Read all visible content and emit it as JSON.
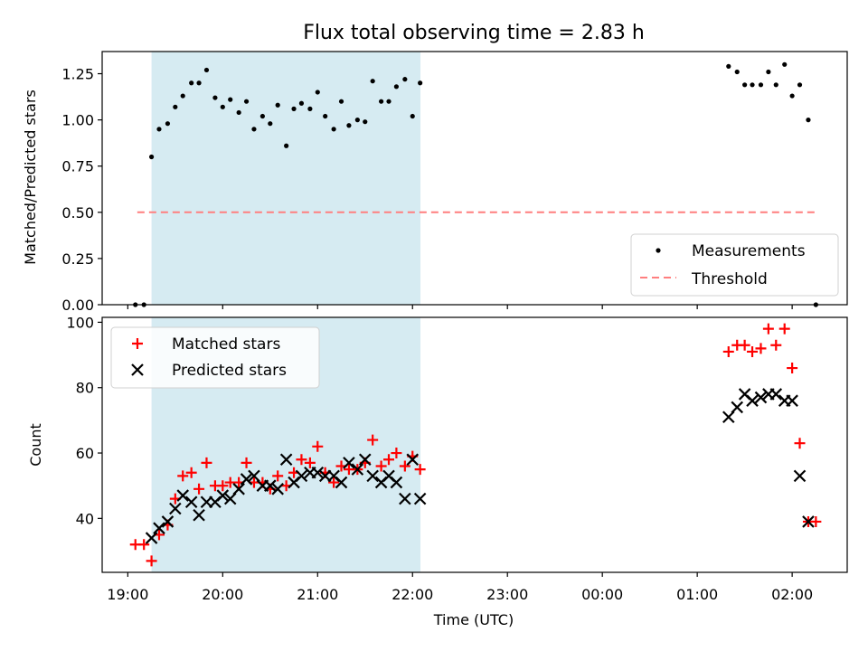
{
  "chart_data": {
    "title": "Flux total observing time = 2.83 h",
    "observing_window": {
      "start": "19:15",
      "end": "22:05",
      "color": "#add8e6"
    },
    "xlabel": "Time (UTC)",
    "x_ticks": [
      {
        "hour": 19,
        "label": "19:00"
      },
      {
        "hour": 20,
        "label": "20:00"
      },
      {
        "hour": 21,
        "label": "21:00"
      },
      {
        "hour": 22,
        "label": "22:00"
      },
      {
        "hour": 23,
        "label": "23:00"
      },
      {
        "hour": 24,
        "label": "00:00"
      },
      {
        "hour": 25,
        "label": "01:00"
      },
      {
        "hour": 26,
        "label": "02:00"
      }
    ],
    "xlim": [
      18.73,
      26.58
    ],
    "top": {
      "type": "scatter",
      "ylabel": "Matched/Predicted stars",
      "ylim": [
        0,
        1.37
      ],
      "y_ticks": [
        "0.00",
        "0.25",
        "0.50",
        "0.75",
        "1.00",
        "1.25"
      ],
      "threshold": {
        "name": "Threshold",
        "value": 0.5,
        "x_range": [
          19.1,
          26.25
        ],
        "color": "#ff7f7f"
      },
      "measurements": {
        "name": "Measurements",
        "color": "#000000",
        "points": [
          [
            19.08,
            0.0
          ],
          [
            19.17,
            0.0
          ],
          [
            19.25,
            0.8
          ],
          [
            19.33,
            0.95
          ],
          [
            19.42,
            0.98
          ],
          [
            19.5,
            1.07
          ],
          [
            19.58,
            1.13
          ],
          [
            19.67,
            1.2
          ],
          [
            19.75,
            1.2
          ],
          [
            19.83,
            1.27
          ],
          [
            19.92,
            1.12
          ],
          [
            20.0,
            1.07
          ],
          [
            20.08,
            1.11
          ],
          [
            20.17,
            1.04
          ],
          [
            20.25,
            1.1
          ],
          [
            20.33,
            0.95
          ],
          [
            20.42,
            1.02
          ],
          [
            20.5,
            0.98
          ],
          [
            20.58,
            1.08
          ],
          [
            20.67,
            0.86
          ],
          [
            20.75,
            1.06
          ],
          [
            20.83,
            1.09
          ],
          [
            20.92,
            1.06
          ],
          [
            21.0,
            1.15
          ],
          [
            21.08,
            1.02
          ],
          [
            21.17,
            0.95
          ],
          [
            21.25,
            1.1
          ],
          [
            21.33,
            0.97
          ],
          [
            21.42,
            1.0
          ],
          [
            21.5,
            0.99
          ],
          [
            21.58,
            1.21
          ],
          [
            21.67,
            1.1
          ],
          [
            21.75,
            1.1
          ],
          [
            21.83,
            1.18
          ],
          [
            21.92,
            1.22
          ],
          [
            22.0,
            1.02
          ],
          [
            22.08,
            1.2
          ],
          [
            25.33,
            1.29
          ],
          [
            25.42,
            1.26
          ],
          [
            25.5,
            1.19
          ],
          [
            25.58,
            1.19
          ],
          [
            25.67,
            1.19
          ],
          [
            25.75,
            1.26
          ],
          [
            25.83,
            1.19
          ],
          [
            25.92,
            1.3
          ],
          [
            26.0,
            1.13
          ],
          [
            26.08,
            1.19
          ],
          [
            26.17,
            1.0
          ],
          [
            26.25,
            0.0
          ]
        ]
      },
      "legend": {
        "position": "lower right"
      }
    },
    "bottom": {
      "type": "scatter",
      "ylabel": "Count",
      "ylim": [
        23.5,
        101.5
      ],
      "y_ticks": [
        "40",
        "60",
        "80",
        "100"
      ],
      "series": [
        {
          "name": "Matched stars",
          "marker": "+",
          "color": "#ff0000",
          "points": [
            [
              19.08,
              32
            ],
            [
              19.17,
              32
            ],
            [
              19.25,
              27
            ],
            [
              19.33,
              35
            ],
            [
              19.42,
              38
            ],
            [
              19.5,
              46
            ],
            [
              19.58,
              53
            ],
            [
              19.67,
              54
            ],
            [
              19.75,
              49
            ],
            [
              19.83,
              57
            ],
            [
              19.92,
              50
            ],
            [
              20.0,
              50
            ],
            [
              20.08,
              51
            ],
            [
              20.17,
              51
            ],
            [
              20.25,
              57
            ],
            [
              20.33,
              51
            ],
            [
              20.42,
              51
            ],
            [
              20.5,
              49
            ],
            [
              20.58,
              53
            ],
            [
              20.67,
              50
            ],
            [
              20.75,
              54
            ],
            [
              20.83,
              58
            ],
            [
              20.92,
              57
            ],
            [
              21.0,
              62
            ],
            [
              21.08,
              54
            ],
            [
              21.17,
              51
            ],
            [
              21.25,
              56
            ],
            [
              21.33,
              55
            ],
            [
              21.42,
              55
            ],
            [
              21.5,
              57
            ],
            [
              21.58,
              64
            ],
            [
              21.67,
              56
            ],
            [
              21.75,
              58
            ],
            [
              21.83,
              60
            ],
            [
              21.92,
              56
            ],
            [
              22.0,
              59
            ],
            [
              22.08,
              55
            ],
            [
              25.33,
              91
            ],
            [
              25.42,
              93
            ],
            [
              25.5,
              93
            ],
            [
              25.58,
              91
            ],
            [
              25.67,
              92
            ],
            [
              25.75,
              98
            ],
            [
              25.83,
              93
            ],
            [
              25.92,
              98
            ],
            [
              26.0,
              86
            ],
            [
              26.08,
              63
            ],
            [
              26.17,
              39
            ],
            [
              26.25,
              39
            ]
          ]
        },
        {
          "name": "Predicted stars",
          "marker": "x",
          "color": "#000000",
          "points": [
            [
              19.25,
              34
            ],
            [
              19.33,
              37
            ],
            [
              19.42,
              39
            ],
            [
              19.5,
              43
            ],
            [
              19.58,
              47
            ],
            [
              19.67,
              45
            ],
            [
              19.75,
              41
            ],
            [
              19.83,
              45
            ],
            [
              19.92,
              45
            ],
            [
              20.0,
              47
            ],
            [
              20.08,
              46
            ],
            [
              20.17,
              49
            ],
            [
              20.25,
              52
            ],
            [
              20.33,
              53
            ],
            [
              20.42,
              50
            ],
            [
              20.5,
              50
            ],
            [
              20.58,
              49
            ],
            [
              20.67,
              58
            ],
            [
              20.75,
              51
            ],
            [
              20.83,
              53
            ],
            [
              20.92,
              54
            ],
            [
              21.0,
              54
            ],
            [
              21.08,
              53
            ],
            [
              21.17,
              53
            ],
            [
              21.25,
              51
            ],
            [
              21.33,
              57
            ],
            [
              21.42,
              55
            ],
            [
              21.5,
              58
            ],
            [
              21.58,
              53
            ],
            [
              21.67,
              51
            ],
            [
              21.75,
              53
            ],
            [
              21.83,
              51
            ],
            [
              21.92,
              46
            ],
            [
              22.0,
              58
            ],
            [
              22.08,
              46
            ],
            [
              25.33,
              71
            ],
            [
              25.42,
              74
            ],
            [
              25.5,
              78
            ],
            [
              25.58,
              76
            ],
            [
              25.67,
              77
            ],
            [
              25.75,
              78
            ],
            [
              25.83,
              78
            ],
            [
              25.92,
              76
            ],
            [
              26.0,
              76
            ],
            [
              26.08,
              53
            ],
            [
              26.17,
              39
            ]
          ]
        }
      ],
      "legend": {
        "position": "upper left"
      }
    }
  }
}
